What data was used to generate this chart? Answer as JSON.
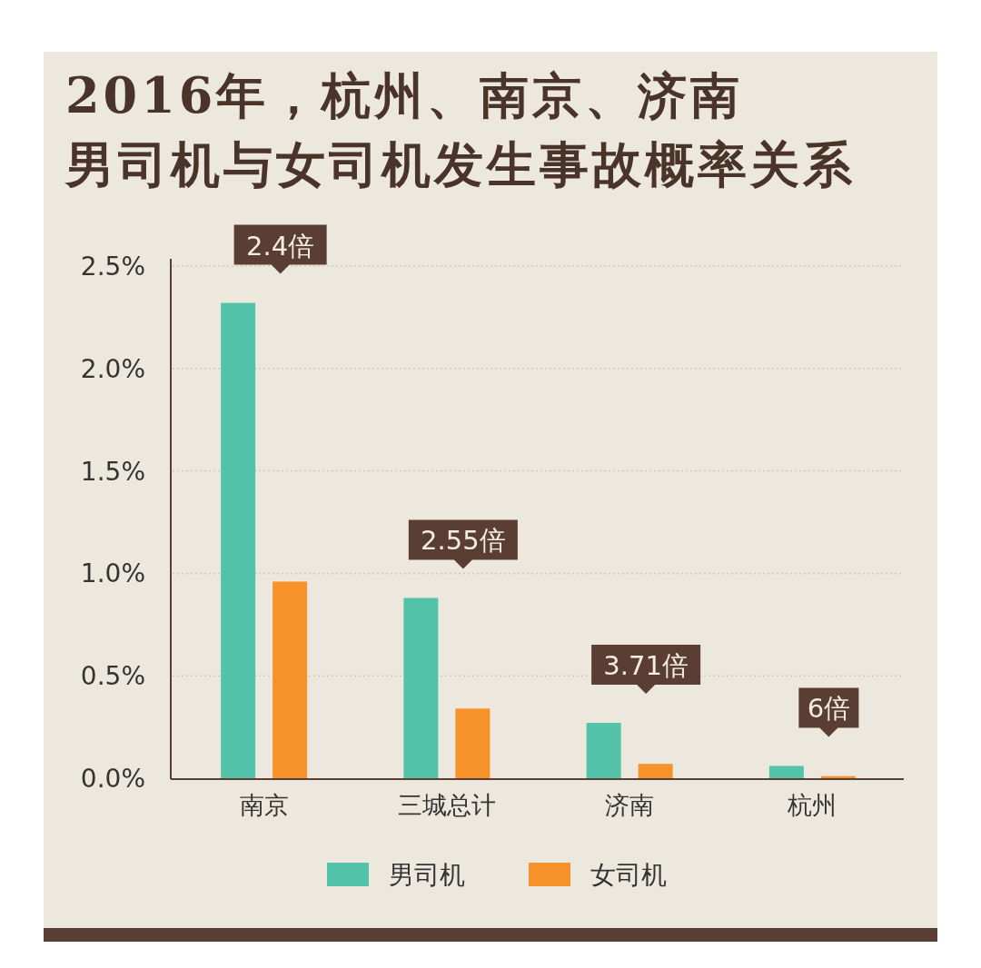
{
  "chart_data": {
    "type": "bar",
    "title": "2016年，杭州、南京、济南",
    "subtitle": "男司机与女司机发生事故概率关系",
    "categories": [
      "南京",
      "三城总计",
      "济南",
      "杭州"
    ],
    "series": [
      {
        "name": "男司机",
        "color": "#52c2a9",
        "values": [
          2.32,
          0.88,
          0.27,
          0.06
        ]
      },
      {
        "name": "女司机",
        "color": "#f7922a",
        "values": [
          0.96,
          0.34,
          0.07,
          0.01
        ]
      }
    ],
    "ylim": [
      0,
      2.5
    ],
    "yticks": [
      {
        "value": 0,
        "label": "0.0%"
      },
      {
        "value": 0.5,
        "label": "0.5%"
      },
      {
        "value": 1,
        "label": "1.0%"
      },
      {
        "value": 1.5,
        "label": "1.5%"
      },
      {
        "value": 2,
        "label": "2.0%"
      },
      {
        "value": 2.5,
        "label": "2.5%"
      }
    ],
    "annotations": [
      "2.4倍",
      "2.55倍",
      "3.71倍",
      "6倍"
    ],
    "grid": "y",
    "legend": "bottom"
  }
}
